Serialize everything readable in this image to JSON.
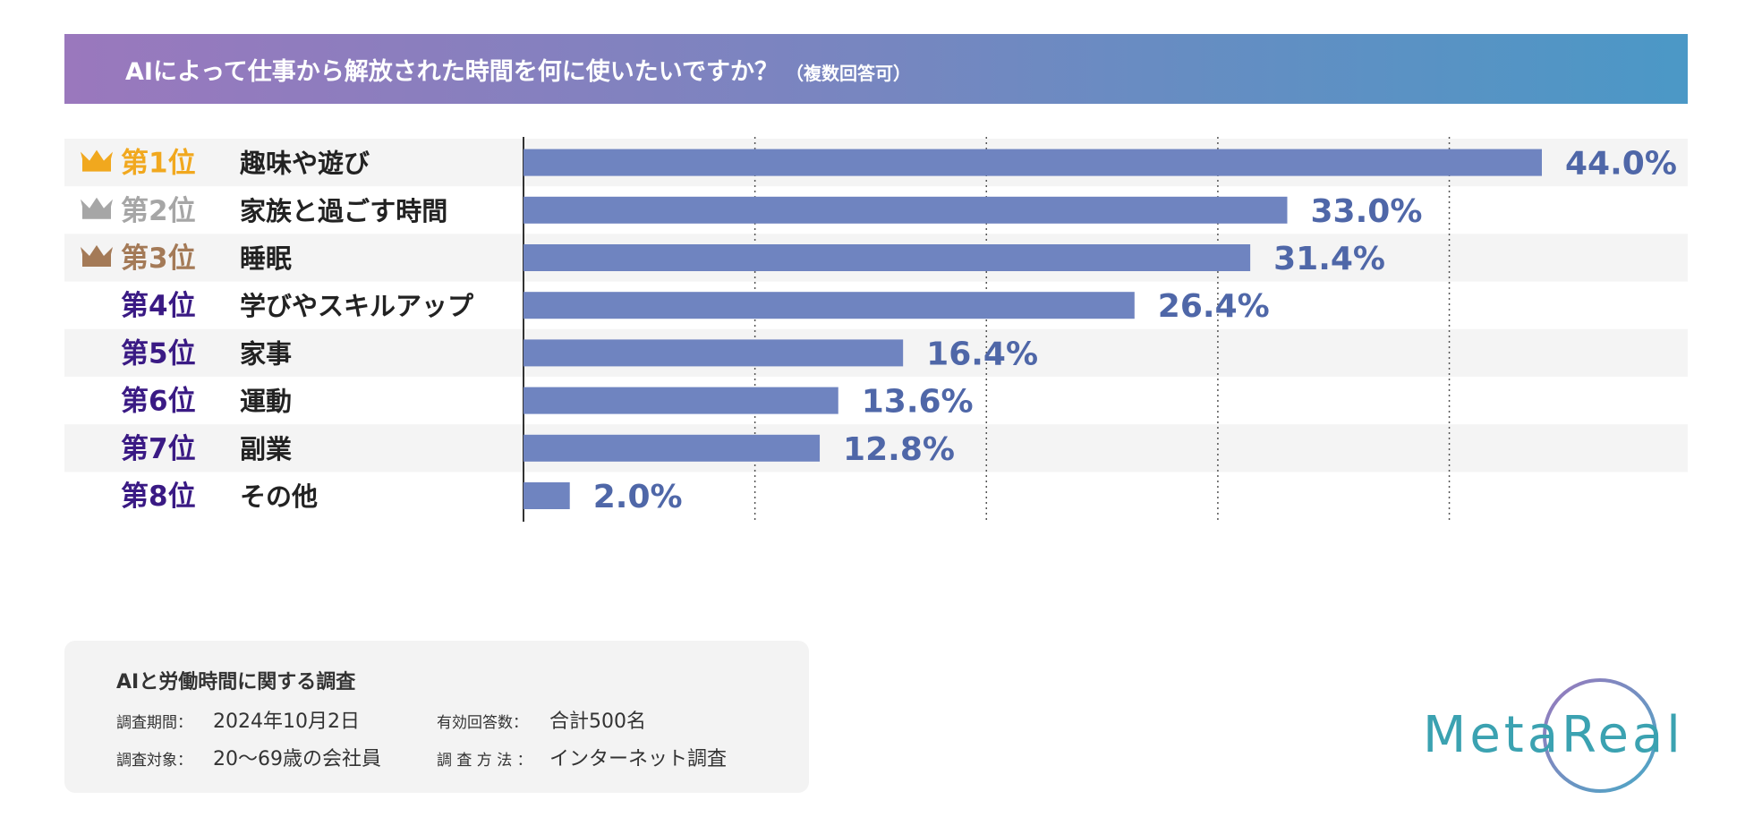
{
  "header": {
    "title": "AIによって仕事から解放された時間を何に使いたいですか？",
    "note": "（複数回答可）"
  },
  "colors": {
    "bar": "#6f84c0",
    "value_text": "#4f67a8",
    "rank_gold": "#f1a81e",
    "rank_silver": "#a6a6a6",
    "rank_bronze": "#a47a57",
    "rank_default": "#3a1a84",
    "stripe": "#f4f4f4"
  },
  "chart_data": {
    "type": "bar",
    "orientation": "horizontal",
    "title": "AIによって仕事から解放された時間を何に使いたいですか？（複数回答可）",
    "ranks": [
      "第1位",
      "第2位",
      "第3位",
      "第4位",
      "第5位",
      "第6位",
      "第7位",
      "第8位"
    ],
    "categories": [
      "趣味や遊び",
      "家族と過ごす時間",
      "睡眠",
      "学びやスキルアップ",
      "家事",
      "運動",
      "副業",
      "その他"
    ],
    "values": [
      44.0,
      33.0,
      31.4,
      26.4,
      16.4,
      13.6,
      12.8,
      2.0
    ],
    "value_labels": [
      "44.0%",
      "33.0%",
      "31.4%",
      "26.4%",
      "16.4%",
      "13.6%",
      "12.8%",
      "2.0%"
    ],
    "unit": "%",
    "xlim": [
      0,
      50
    ],
    "gridlines": [
      10,
      20,
      30,
      40
    ],
    "xlabel": "",
    "ylabel": ""
  },
  "survey": {
    "title": "AIと労働時間に関する調査",
    "period_label": "調査期間：",
    "period_value": "2024年10月2日",
    "responses_label": "有効回答数：",
    "responses_value": "合計500名",
    "target_label": "調査対象：",
    "target_value": "20〜69歳の会社員",
    "method_label": "調 査 方 法 ：",
    "method_value": "インターネット調査"
  },
  "logo": {
    "text": "MetaReal"
  }
}
